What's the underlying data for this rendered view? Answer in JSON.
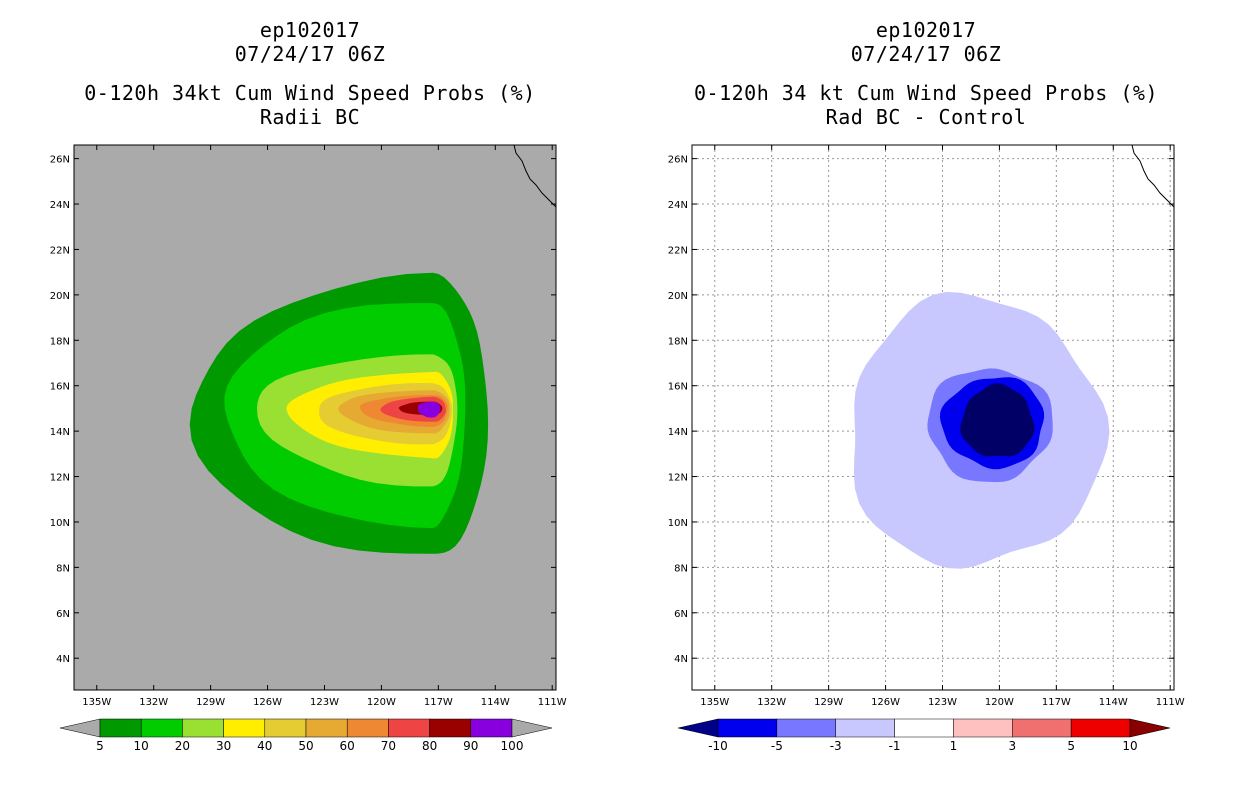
{
  "panels": [
    {
      "storm_id": "ep102017",
      "date": "07/24/17 06Z",
      "title": "0-120h 34kt Cum Wind Speed Probs (%)",
      "subtitle": "Radii BC"
    },
    {
      "storm_id": "ep102017",
      "date": "07/24/17 06Z",
      "title": "0-120h 34 kt Cum Wind Speed Probs (%)",
      "subtitle": "Rad BC - Control"
    }
  ],
  "chart_data": [
    {
      "type": "contour-map",
      "title": "0-120h 34kt Cum Wind Speed Probs (%)",
      "subtitle": "Radii BC",
      "lon_range": [
        -136.2,
        -110.8
      ],
      "lat_range": [
        2.6,
        26.6
      ],
      "lon_ticks": [
        -135,
        -132,
        -129,
        -126,
        -123,
        -120,
        -117,
        -114,
        -111
      ],
      "lon_tick_labels": [
        "135W",
        "132W",
        "129W",
        "126W",
        "123W",
        "120W",
        "117W",
        "114W",
        "111W"
      ],
      "lat_ticks": [
        4,
        6,
        8,
        10,
        12,
        14,
        16,
        18,
        20,
        22,
        24,
        26
      ],
      "lat_tick_labels": [
        "4N",
        "6N",
        "8N",
        "10N",
        "12N",
        "14N",
        "16N",
        "18N",
        "20N",
        "22N",
        "24N",
        "26N"
      ],
      "grid": false,
      "background_color": "#aaaaaa",
      "storm_center": {
        "lon": -117.3,
        "lat": 15.0
      },
      "contour_levels": [
        5,
        10,
        20,
        30,
        40,
        50,
        60,
        70,
        80,
        90
      ],
      "contours": [
        {
          "level": 5,
          "color": "#009900",
          "lon_w": -130.0,
          "lon_e": -114.4,
          "lat_s": 8.4,
          "lat_n": 20.8
        },
        {
          "level": 10,
          "color": "#00cc00",
          "lon_w": -128.4,
          "lon_e": -115.6,
          "lat_s": 9.8,
          "lat_n": 19.7
        },
        {
          "level": 20,
          "color": "#99e033",
          "lon_w": -126.6,
          "lon_e": -116.0,
          "lat_s": 11.6,
          "lat_n": 17.4
        },
        {
          "level": 30,
          "color": "#ffee00",
          "lon_w": -124.8,
          "lon_e": -116.2,
          "lat_s": 12.8,
          "lat_n": 16.6
        },
        {
          "level": 40,
          "color": "#e6cc33",
          "lon_w": -123.4,
          "lon_e": -116.3,
          "lat_s": 13.4,
          "lat_n": 16.1
        },
        {
          "level": 50,
          "color": "#e6aa33",
          "lon_w": -122.3,
          "lon_e": -116.4,
          "lat_s": 13.9,
          "lat_n": 15.8
        },
        {
          "level": 60,
          "color": "#ee8833",
          "lon_w": -121.1,
          "lon_e": -116.5,
          "lat_s": 14.2,
          "lat_n": 15.6
        },
        {
          "level": 70,
          "color": "#ee4444",
          "lon_w": -120.0,
          "lon_e": -116.6,
          "lat_s": 14.4,
          "lat_n": 15.5
        },
        {
          "level": 80,
          "color": "#990000",
          "lon_w": -119.1,
          "lon_e": -116.8,
          "lat_s": 14.7,
          "lat_n": 15.3
        },
        {
          "level": 90,
          "color": "#8800dd",
          "lon_w": -118.1,
          "lon_e": -116.9,
          "lat_s": 14.6,
          "lat_n": 15.3
        }
      ],
      "colorbar": {
        "labels": [
          "5",
          "10",
          "20",
          "30",
          "40",
          "50",
          "60",
          "70",
          "80",
          "90",
          "100"
        ],
        "colors": [
          "#009900",
          "#00cc00",
          "#99e033",
          "#ffee00",
          "#e6cc33",
          "#e6aa33",
          "#ee8833",
          "#ee4444",
          "#990000",
          "#8800dd"
        ],
        "under_color": "#aaaaaa",
        "over_color": "#aaaaaa"
      }
    },
    {
      "type": "contour-map",
      "title": "0-120h 34 kt Cum Wind Speed Probs (%)",
      "subtitle": "Rad BC - Control",
      "lon_range": [
        -136.2,
        -110.8
      ],
      "lat_range": [
        2.6,
        26.6
      ],
      "lon_ticks": [
        -135,
        -132,
        -129,
        -126,
        -123,
        -120,
        -117,
        -114,
        -111
      ],
      "lon_tick_labels": [
        "135W",
        "132W",
        "129W",
        "126W",
        "123W",
        "120W",
        "117W",
        "114W",
        "111W"
      ],
      "lat_ticks": [
        4,
        6,
        8,
        10,
        12,
        14,
        16,
        18,
        20,
        22,
        24,
        26
      ],
      "lat_tick_labels": [
        "4N",
        "6N",
        "8N",
        "10N",
        "12N",
        "14N",
        "16N",
        "18N",
        "20N",
        "22N",
        "24N",
        "26N"
      ],
      "grid": true,
      "background_color": "#ffffff",
      "contour_levels": [
        -1,
        -3,
        -5,
        -10
      ],
      "contours": [
        {
          "level": -1,
          "color": "#c8c8ff",
          "lon_w": -128.0,
          "lon_e": -114.6,
          "lat_s": 8.0,
          "lat_n": 19.9
        },
        {
          "level": -3,
          "color": "#7777ff",
          "lon_w": -123.8,
          "lon_e": -117.2,
          "lat_s": 11.8,
          "lat_n": 16.8
        },
        {
          "level": -5,
          "color": "#0000ee",
          "lon_w": -123.0,
          "lon_e": -117.6,
          "lat_s": 12.4,
          "lat_n": 16.4
        },
        {
          "level": -10,
          "color": "#000066",
          "lon_w": -122.0,
          "lon_e": -118.2,
          "lat_s": 12.8,
          "lat_n": 16.0
        }
      ],
      "colorbar": {
        "labels": [
          "-10",
          "-5",
          "-3",
          "-1",
          "1",
          "3",
          "5",
          "10"
        ],
        "colors": [
          "#0000ee",
          "#7777ff",
          "#c8c8ff",
          "#ffffff",
          "#ffc0c0",
          "#f07070",
          "#ee0000"
        ],
        "under_color": "#000088",
        "over_color": "#880000"
      }
    }
  ]
}
